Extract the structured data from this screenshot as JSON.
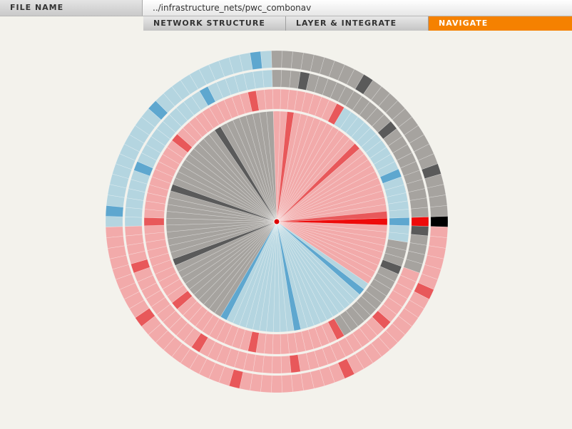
{
  "header": {
    "file_label": "FILE NAME",
    "file_path": "../infrastructure_nets/pwc_combonav"
  },
  "tabs": [
    {
      "label": "NETWORK STRUCTURE",
      "active": false
    },
    {
      "label": "LAYER & INTEGRATE",
      "active": false
    },
    {
      "label": "NAVIGATE",
      "active": true
    }
  ],
  "colors": {
    "background": "#f3f2ec",
    "accent": "#f58100",
    "pink": "#f2aaaa",
    "red": "#e8585a",
    "bright_red": "#ee0a0a",
    "light_blue": "#b4d5e0",
    "blue": "#5ea7cf",
    "gray": "#a6a39f",
    "dark_gray": "#5a5a5a",
    "black": "#000000",
    "center_node": "#dd0000"
  },
  "visualization": {
    "type": "radial-network",
    "segments": 100,
    "selected_segment": 0
  }
}
